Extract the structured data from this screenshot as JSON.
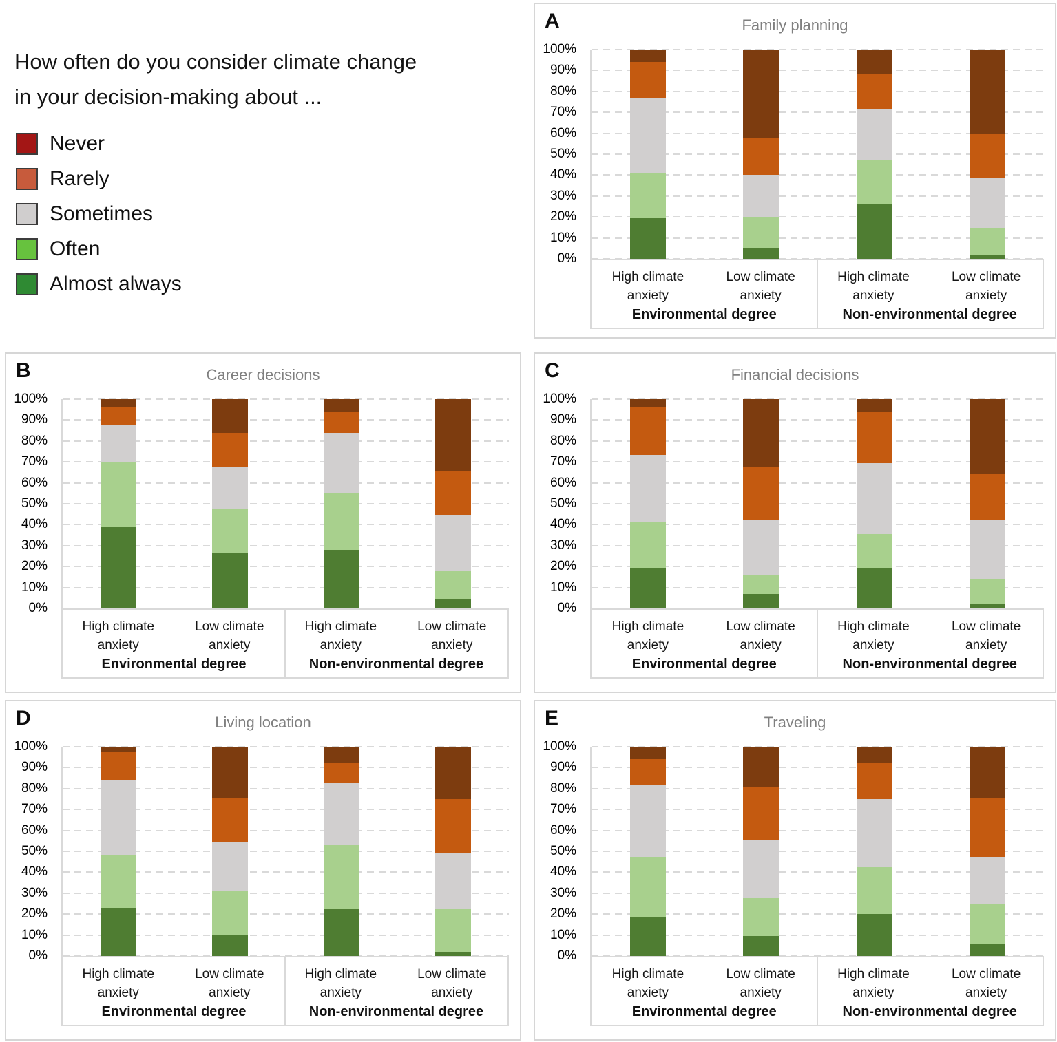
{
  "figure": {
    "question_line1": "How often do you consider climate change",
    "question_line2": "in your decision-making about ..."
  },
  "colors": {
    "gridline": "#d9d9d9",
    "panel_border": "#d6d6d6",
    "panel_title_gray": "#7f7f7f",
    "axis_text": "#000000",
    "swatch_border": "#3c3c3c"
  },
  "chart_data": {
    "type": "bar",
    "subtype": "stacked-100-percent",
    "legend_position": "top-left, outside panels",
    "grid": "dashed horizontal lines every 10%",
    "ylim": [
      0,
      100
    ],
    "series": [
      {
        "key": "almost-always",
        "label": "Almost always",
        "bar_color": "#4f7d32",
        "legend_color": "#2f8a33"
      },
      {
        "key": "often",
        "label": "Often",
        "bar_color": "#a8d08d",
        "legend_color": "#67c23e"
      },
      {
        "key": "sometimes",
        "label": "Sometimes",
        "bar_color": "#d1cfcf",
        "legend_color": "#d0cece"
      },
      {
        "key": "rarely",
        "label": "Rarely",
        "bar_color": "#c45a10",
        "legend_color": "#c75b3c"
      },
      {
        "key": "never",
        "label": "Never",
        "bar_color": "#7d3c0f",
        "legend_color": "#a31615"
      }
    ],
    "series_order_note": "values arrays are bottom-to-top: Almost always, Often, Sometimes, Rarely, Never (percent)",
    "y_ticks": [
      {
        "label": "0%",
        "value": 0
      },
      {
        "label": "10%",
        "value": 10
      },
      {
        "label": "20%",
        "value": 20
      },
      {
        "label": "30%",
        "value": 30
      },
      {
        "label": "40%",
        "value": 40
      },
      {
        "label": "50%",
        "value": 50
      },
      {
        "label": "60%",
        "value": 60
      },
      {
        "label": "70%",
        "value": 70
      },
      {
        "label": "80%",
        "value": 80
      },
      {
        "label": "90%",
        "value": 90
      },
      {
        "label": "100%",
        "value": 100
      }
    ],
    "bar_labels": [
      "High climate anxiety",
      "Low climate anxiety",
      "High climate anxiety",
      "Low climate anxiety"
    ],
    "group_labels": [
      "Environmental degree",
      "Non-environmental degree"
    ],
    "charts": [
      {
        "letter": "A",
        "title": "Family planning",
        "bars": [
          [
            19.5,
            21.5,
            36.0,
            17.0,
            6.0
          ],
          [
            5.0,
            15.0,
            20.0,
            17.5,
            42.5
          ],
          [
            26.0,
            21.0,
            24.5,
            17.0,
            11.5
          ],
          [
            2.0,
            12.5,
            24.0,
            21.0,
            40.5
          ]
        ]
      },
      {
        "letter": "B",
        "title": "Career decisions",
        "bars": [
          [
            39.0,
            31.0,
            18.0,
            8.5,
            3.5
          ],
          [
            26.5,
            21.0,
            20.0,
            16.5,
            16.0
          ],
          [
            28.0,
            27.0,
            29.0,
            10.0,
            6.0
          ],
          [
            4.5,
            13.5,
            26.5,
            21.0,
            34.5
          ]
        ]
      },
      {
        "letter": "C",
        "title": "Financial decisions",
        "bars": [
          [
            19.5,
            21.5,
            32.5,
            22.5,
            4.0
          ],
          [
            7.0,
            9.0,
            26.5,
            25.0,
            32.5
          ],
          [
            19.0,
            16.5,
            34.0,
            24.5,
            6.0
          ],
          [
            2.0,
            12.0,
            28.0,
            22.5,
            35.5
          ]
        ]
      },
      {
        "letter": "D",
        "title": "Living location",
        "bars": [
          [
            23.0,
            25.5,
            35.5,
            13.5,
            2.5
          ],
          [
            10.0,
            21.0,
            23.5,
            21.0,
            24.5
          ],
          [
            22.5,
            30.5,
            29.5,
            10.0,
            7.5
          ],
          [
            2.0,
            20.5,
            26.5,
            26.0,
            25.0
          ]
        ]
      },
      {
        "letter": "E",
        "title": "Traveling",
        "bars": [
          [
            18.5,
            29.0,
            34.0,
            12.5,
            6.0
          ],
          [
            9.5,
            18.0,
            28.0,
            25.5,
            19.0
          ],
          [
            20.0,
            22.5,
            32.5,
            17.5,
            7.5
          ],
          [
            6.0,
            19.0,
            22.5,
            28.0,
            24.5
          ]
        ]
      }
    ]
  }
}
